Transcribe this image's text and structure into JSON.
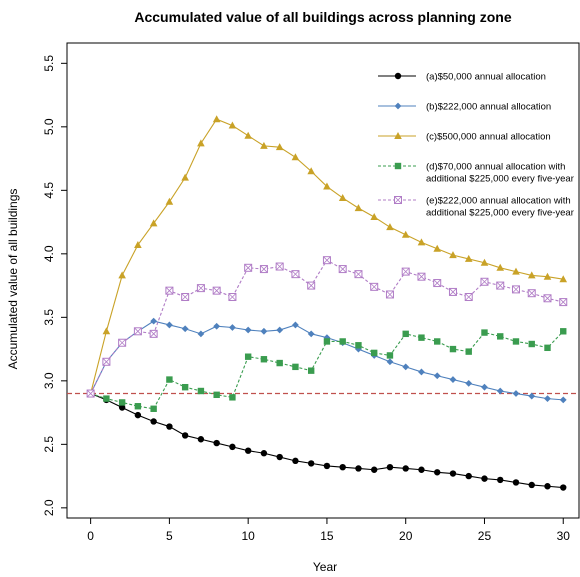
{
  "chart_data": {
    "type": "line",
    "title": "Accumulated value of all buildings across planning zone",
    "xlabel": "Year",
    "ylabel": "Accumulated value of all buildings",
    "xlim": [
      -1.5,
      31
    ],
    "ylim": [
      1.92,
      5.66
    ],
    "xticks": [
      0,
      5,
      10,
      15,
      20,
      25,
      30
    ],
    "yticks": [
      2.0,
      2.5,
      3.0,
      3.5,
      4.0,
      4.5,
      5.0,
      5.5
    ],
    "ytick_labels": [
      "2.0",
      "2.5",
      "3.0",
      "3.5",
      "4.0",
      "4.5",
      "5.0",
      "5.5"
    ],
    "reference_line": {
      "y": 2.9,
      "color": "#c0504d",
      "style": "dashed"
    },
    "legend_position": "top-right",
    "x": [
      0,
      1,
      2,
      3,
      4,
      5,
      6,
      7,
      8,
      9,
      10,
      11,
      12,
      13,
      14,
      15,
      16,
      17,
      18,
      19,
      20,
      21,
      22,
      23,
      24,
      25,
      26,
      27,
      28,
      29,
      30
    ],
    "series": [
      {
        "name": "(a)$50,000 annual allocation",
        "color": "#000000",
        "marker": "circle",
        "dash": "",
        "values": [
          2.9,
          2.85,
          2.79,
          2.73,
          2.68,
          2.64,
          2.57,
          2.54,
          2.51,
          2.48,
          2.45,
          2.43,
          2.4,
          2.37,
          2.35,
          2.33,
          2.32,
          2.31,
          2.3,
          2.32,
          2.31,
          2.3,
          2.28,
          2.27,
          2.25,
          2.23,
          2.22,
          2.2,
          2.18,
          2.17,
          2.16
        ]
      },
      {
        "name": "(b)$222,000 annual allocation",
        "color": "#4f81bd",
        "marker": "diamond",
        "dash": "",
        "values": [
          2.9,
          3.15,
          3.3,
          3.39,
          3.47,
          3.44,
          3.41,
          3.37,
          3.43,
          3.42,
          3.4,
          3.39,
          3.4,
          3.44,
          3.37,
          3.34,
          3.3,
          3.25,
          3.2,
          3.15,
          3.11,
          3.07,
          3.04,
          3.01,
          2.98,
          2.95,
          2.92,
          2.9,
          2.88,
          2.86,
          2.85
        ]
      },
      {
        "name": "(c)$500,000 annual allocation",
        "color": "#c9a227",
        "marker": "triangle",
        "dash": "",
        "values": [
          2.9,
          3.39,
          3.83,
          4.07,
          4.24,
          4.41,
          4.6,
          4.87,
          5.06,
          5.01,
          4.93,
          4.85,
          4.84,
          4.76,
          4.65,
          4.53,
          4.44,
          4.36,
          4.29,
          4.21,
          4.15,
          4.09,
          4.04,
          3.99,
          3.96,
          3.93,
          3.89,
          3.86,
          3.83,
          3.82,
          3.8
        ]
      },
      {
        "name": "(d)$70,000 annual allocation with additional $225,000 every five-year",
        "color": "#3a9c4f",
        "marker": "square",
        "dash": "3,2",
        "values": [
          2.9,
          2.86,
          2.83,
          2.8,
          2.78,
          3.01,
          2.95,
          2.92,
          2.89,
          2.87,
          3.19,
          3.17,
          3.14,
          3.11,
          3.08,
          3.31,
          3.31,
          3.28,
          3.22,
          3.2,
          3.37,
          3.34,
          3.31,
          3.25,
          3.23,
          3.38,
          3.35,
          3.31,
          3.29,
          3.26,
          3.39
        ]
      },
      {
        "name": "(e)$222,000 annual allocation with additional $225,000 every five-year",
        "color": "#b07cc6",
        "marker": "square-x",
        "dash": "3,2",
        "values": [
          2.9,
          3.15,
          3.3,
          3.39,
          3.37,
          3.71,
          3.66,
          3.73,
          3.71,
          3.66,
          3.89,
          3.88,
          3.9,
          3.84,
          3.75,
          3.95,
          3.88,
          3.84,
          3.74,
          3.68,
          3.86,
          3.82,
          3.77,
          3.7,
          3.66,
          3.78,
          3.75,
          3.72,
          3.69,
          3.65,
          3.62
        ]
      }
    ]
  }
}
